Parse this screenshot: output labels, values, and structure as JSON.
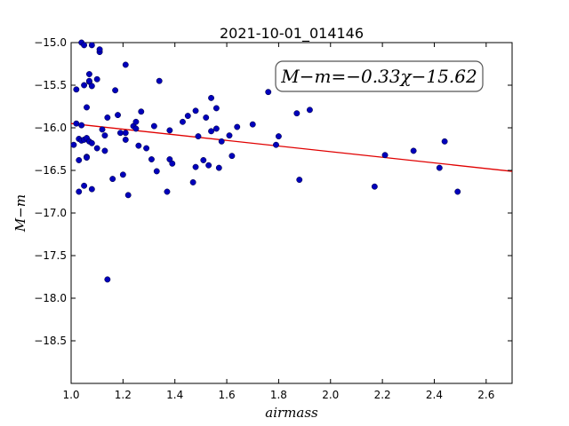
{
  "chart_data": {
    "type": "scatter",
    "title": "2021-10-01_014146",
    "xlabel": "airmass",
    "ylabel": "M−m",
    "xlim": [
      1.0,
      2.7
    ],
    "ylim": [
      -15.0,
      -19.0
    ],
    "y_inverted": true,
    "x_ticks": [
      1.0,
      1.2,
      1.4,
      1.6,
      1.8,
      2.0,
      2.2,
      2.4,
      2.6
    ],
    "x_tick_labels": [
      "1.0",
      "1.2",
      "1.4",
      "1.6",
      "1.8",
      "2.0",
      "2.2",
      "2.4",
      "2.6"
    ],
    "y_ticks": [
      -15.0,
      -15.5,
      -16.0,
      -16.5,
      -17.0,
      -17.5,
      -18.0,
      -18.5
    ],
    "y_tick_labels": [
      "−15.0",
      "−15.5",
      "−16.0",
      "−16.5",
      "−17.0",
      "−17.5",
      "−18.0",
      "−18.5"
    ],
    "grid": false,
    "annotation": "M−m=−0.33χ−15.62",
    "fit": {
      "slope": -0.33,
      "intercept": -15.62,
      "color": "#e00000"
    },
    "marker_color": "#0000bb",
    "points": [
      [
        1.01,
        -16.2
      ],
      [
        1.02,
        -15.95
      ],
      [
        1.02,
        -15.55
      ],
      [
        1.03,
        -16.75
      ],
      [
        1.03,
        -16.13
      ],
      [
        1.03,
        -16.38
      ],
      [
        1.04,
        -16.15
      ],
      [
        1.04,
        -15.0
      ],
      [
        1.04,
        -15.97
      ],
      [
        1.05,
        -16.14
      ],
      [
        1.05,
        -16.68
      ],
      [
        1.05,
        -15.5
      ],
      [
        1.05,
        -15.03
      ],
      [
        1.06,
        -16.34
      ],
      [
        1.06,
        -15.76
      ],
      [
        1.06,
        -16.35
      ],
      [
        1.06,
        -16.12
      ],
      [
        1.07,
        -15.46
      ],
      [
        1.07,
        -15.45
      ],
      [
        1.07,
        -15.37
      ],
      [
        1.07,
        -16.16
      ],
      [
        1.08,
        -16.18
      ],
      [
        1.08,
        -15.03
      ],
      [
        1.08,
        -15.51
      ],
      [
        1.08,
        -16.72
      ],
      [
        1.1,
        -16.24
      ],
      [
        1.1,
        -15.43
      ],
      [
        1.11,
        -15.11
      ],
      [
        1.11,
        -15.08
      ],
      [
        1.12,
        -16.02
      ],
      [
        1.13,
        -16.27
      ],
      [
        1.13,
        -16.09
      ],
      [
        1.14,
        -17.78
      ],
      [
        1.14,
        -15.88
      ],
      [
        1.16,
        -16.6
      ],
      [
        1.17,
        -15.56
      ],
      [
        1.18,
        -15.85
      ],
      [
        1.19,
        -16.06
      ],
      [
        1.2,
        -16.55
      ],
      [
        1.21,
        -16.06
      ],
      [
        1.21,
        -15.26
      ],
      [
        1.21,
        -16.14
      ],
      [
        1.22,
        -16.79
      ],
      [
        1.24,
        -15.98
      ],
      [
        1.25,
        -16.01
      ],
      [
        1.25,
        -15.93
      ],
      [
        1.26,
        -16.21
      ],
      [
        1.27,
        -15.81
      ],
      [
        1.29,
        -16.24
      ],
      [
        1.31,
        -16.37
      ],
      [
        1.32,
        -15.98
      ],
      [
        1.33,
        -16.51
      ],
      [
        1.34,
        -15.45
      ],
      [
        1.37,
        -16.75
      ],
      [
        1.38,
        -16.03
      ],
      [
        1.38,
        -16.37
      ],
      [
        1.39,
        -16.42
      ],
      [
        1.43,
        -15.93
      ],
      [
        1.45,
        -15.86
      ],
      [
        1.47,
        -16.64
      ],
      [
        1.48,
        -16.46
      ],
      [
        1.48,
        -15.8
      ],
      [
        1.49,
        -16.1
      ],
      [
        1.51,
        -16.38
      ],
      [
        1.52,
        -15.88
      ],
      [
        1.53,
        -16.44
      ],
      [
        1.54,
        -15.65
      ],
      [
        1.54,
        -16.04
      ],
      [
        1.56,
        -16.01
      ],
      [
        1.56,
        -15.77
      ],
      [
        1.57,
        -16.47
      ],
      [
        1.58,
        -16.16
      ],
      [
        1.61,
        -16.09
      ],
      [
        1.62,
        -16.33
      ],
      [
        1.64,
        -15.99
      ],
      [
        1.7,
        -15.96
      ],
      [
        1.76,
        -15.58
      ],
      [
        1.79,
        -16.2
      ],
      [
        1.8,
        -16.1
      ],
      [
        1.87,
        -15.83
      ],
      [
        1.88,
        -16.61
      ],
      [
        1.92,
        -15.79
      ],
      [
        2.17,
        -16.69
      ],
      [
        2.21,
        -16.32
      ],
      [
        2.32,
        -16.27
      ],
      [
        2.42,
        -16.47
      ],
      [
        2.44,
        -16.16
      ],
      [
        2.49,
        -16.75
      ]
    ]
  }
}
